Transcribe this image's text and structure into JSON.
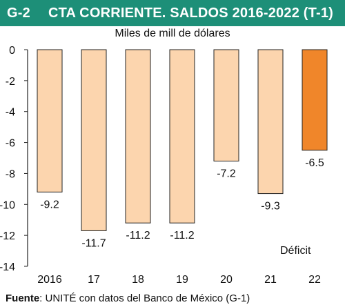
{
  "header": {
    "code": "G-2",
    "title": "CTA CORRIENTE. SALDOS 2016-2022 (T-1)"
  },
  "colors": {
    "header_bg": "#1d8f78",
    "bar": "#fcd5ae",
    "bar_highlight": "#f0862a",
    "bar_stroke": "#222222"
  },
  "chart_data": {
    "type": "bar",
    "unit_label": "Miles de mill de dólares",
    "categories": [
      "2016",
      "17",
      "18",
      "19",
      "20",
      "21",
      "22"
    ],
    "values": [
      -9.2,
      -11.7,
      -11.2,
      -11.2,
      -7.2,
      -9.3,
      -6.5
    ],
    "value_labels": [
      "-9.2",
      "-11.7",
      "-11.2",
      "-11.2",
      "-7.2",
      "-9.3",
      "-6.5"
    ],
    "highlight_index": 6,
    "ylim": [
      -14,
      0
    ],
    "yticks": [
      0,
      -2,
      -4,
      -6,
      -8,
      -10,
      -12,
      -14
    ],
    "annotation": "Déficit",
    "grid": false,
    "xlabel": "",
    "ylabel": ""
  },
  "footer": {
    "source_label": "Fuente",
    "source_text": ": UNITÉ con datos del Banco de México (G-1)"
  }
}
